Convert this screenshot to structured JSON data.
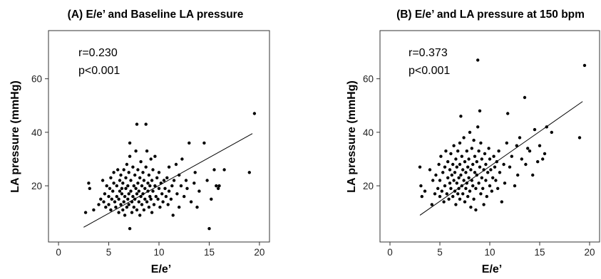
{
  "chart_data": [
    {
      "type": "scatter",
      "title": "(A) E/e’ and Baseline LA pressure",
      "xlabel": "E/e’",
      "ylabel": "LA pressure (mmHg)",
      "xlim": [
        -1,
        21
      ],
      "ylim": [
        -1,
        78
      ],
      "xticks": [
        0,
        5,
        10,
        15,
        20
      ],
      "yticks": [
        20,
        40,
        60
      ],
      "annotations": [
        "r=0.230",
        "p<0.001"
      ],
      "fit_line": {
        "x": [
          2.5,
          19.3
        ],
        "y": [
          4.5,
          39.5
        ]
      },
      "points": [
        [
          3.0,
          21
        ],
        [
          3.1,
          19
        ],
        [
          2.7,
          10
        ],
        [
          3.5,
          11
        ],
        [
          4.0,
          13
        ],
        [
          4.2,
          15
        ],
        [
          4.4,
          22
        ],
        [
          4.5,
          14
        ],
        [
          4.6,
          17
        ],
        [
          4.7,
          12
        ],
        [
          4.8,
          20
        ],
        [
          5.0,
          13
        ],
        [
          5.0,
          16
        ],
        [
          5.1,
          19
        ],
        [
          5.2,
          23
        ],
        [
          5.2,
          11
        ],
        [
          5.3,
          15
        ],
        [
          5.4,
          18
        ],
        [
          5.5,
          21
        ],
        [
          5.5,
          25
        ],
        [
          5.6,
          14
        ],
        [
          5.7,
          12
        ],
        [
          5.8,
          16
        ],
        [
          5.8,
          20
        ],
        [
          5.9,
          26
        ],
        [
          6.0,
          10
        ],
        [
          6.0,
          15
        ],
        [
          6.1,
          18
        ],
        [
          6.1,
          22
        ],
        [
          6.2,
          13
        ],
        [
          6.2,
          24
        ],
        [
          6.3,
          17
        ],
        [
          6.3,
          19
        ],
        [
          6.4,
          11
        ],
        [
          6.4,
          21
        ],
        [
          6.5,
          14
        ],
        [
          6.5,
          26
        ],
        [
          6.6,
          16
        ],
        [
          6.6,
          9
        ],
        [
          6.7,
          23
        ],
        [
          6.7,
          19
        ],
        [
          6.8,
          12
        ],
        [
          6.8,
          28
        ],
        [
          6.9,
          15
        ],
        [
          6.9,
          20
        ],
        [
          7.0,
          17
        ],
        [
          7.0,
          13
        ],
        [
          7.0,
          25
        ],
        [
          7.1,
          36
        ],
        [
          7.1,
          31
        ],
        [
          7.1,
          4
        ],
        [
          7.2,
          18
        ],
        [
          7.2,
          22
        ],
        [
          7.3,
          14
        ],
        [
          7.3,
          10
        ],
        [
          7.4,
          16
        ],
        [
          7.4,
          27
        ],
        [
          7.5,
          20
        ],
        [
          7.5,
          12
        ],
        [
          7.6,
          24
        ],
        [
          7.6,
          15
        ],
        [
          7.7,
          19
        ],
        [
          7.7,
          33
        ],
        [
          7.8,
          17
        ],
        [
          7.8,
          43
        ],
        [
          7.8,
          11
        ],
        [
          7.9,
          21
        ],
        [
          7.9,
          26
        ],
        [
          8.0,
          14
        ],
        [
          8.0,
          18
        ],
        [
          8.1,
          23
        ],
        [
          8.1,
          9
        ],
        [
          8.2,
          16
        ],
        [
          8.2,
          29
        ],
        [
          8.3,
          20
        ],
        [
          8.3,
          13
        ],
        [
          8.4,
          25
        ],
        [
          8.4,
          17
        ],
        [
          8.5,
          22
        ],
        [
          8.5,
          11
        ],
        [
          8.6,
          15
        ],
        [
          8.6,
          19
        ],
        [
          8.7,
          27
        ],
        [
          8.7,
          43
        ],
        [
          8.8,
          14
        ],
        [
          8.8,
          33
        ],
        [
          8.9,
          21
        ],
        [
          8.9,
          18
        ],
        [
          9.0,
          12
        ],
        [
          9.0,
          24
        ],
        [
          9.1,
          16
        ],
        [
          9.1,
          20
        ],
        [
          9.2,
          30
        ],
        [
          9.2,
          15
        ],
        [
          9.3,
          22
        ],
        [
          9.3,
          10
        ],
        [
          9.4,
          18
        ],
        [
          9.4,
          26
        ],
        [
          9.5,
          13
        ],
        [
          9.6,
          20
        ],
        [
          9.6,
          31
        ],
        [
          9.7,
          16
        ],
        [
          9.8,
          23
        ],
        [
          9.9,
          15
        ],
        [
          10.0,
          19
        ],
        [
          10.0,
          25
        ],
        [
          10.1,
          12
        ],
        [
          10.2,
          21
        ],
        [
          10.3,
          17
        ],
        [
          10.4,
          14
        ],
        [
          10.5,
          22
        ],
        [
          10.6,
          19
        ],
        [
          10.7,
          16
        ],
        [
          10.8,
          23
        ],
        [
          10.9,
          13
        ],
        [
          11.0,
          18
        ],
        [
          11.0,
          27
        ],
        [
          11.2,
          15
        ],
        [
          11.3,
          20
        ],
        [
          11.4,
          9
        ],
        [
          11.5,
          22
        ],
        [
          11.7,
          28
        ],
        [
          11.8,
          17
        ],
        [
          12.0,
          24
        ],
        [
          12.0,
          12
        ],
        [
          12.2,
          20
        ],
        [
          12.3,
          30
        ],
        [
          12.5,
          16
        ],
        [
          12.7,
          22
        ],
        [
          12.8,
          19
        ],
        [
          13.0,
          36
        ],
        [
          13.2,
          14
        ],
        [
          13.5,
          21
        ],
        [
          13.6,
          25
        ],
        [
          13.8,
          12
        ],
        [
          14.0,
          18
        ],
        [
          14.5,
          36
        ],
        [
          14.8,
          22
        ],
        [
          15.0,
          4
        ],
        [
          15.2,
          15
        ],
        [
          15.5,
          26
        ],
        [
          15.7,
          20
        ],
        [
          15.9,
          19
        ],
        [
          16.0,
          20
        ],
        [
          16.5,
          26
        ],
        [
          19.0,
          25
        ],
        [
          19.5,
          47
        ]
      ]
    },
    {
      "type": "scatter",
      "title": "(B) E/e’ and LA pressure at 150 bpm",
      "xlabel": "E/e’",
      "ylabel": "LA pressure (mmHg)",
      "xlim": [
        -1,
        21
      ],
      "ylim": [
        -1,
        78
      ],
      "xticks": [
        0,
        5,
        10,
        15,
        20
      ],
      "yticks": [
        20,
        40,
        60
      ],
      "annotations": [
        "r=0.373",
        "p<0.001"
      ],
      "fit_line": {
        "x": [
          3.0,
          19.3
        ],
        "y": [
          9.0,
          51.5
        ]
      },
      "points": [
        [
          3.0,
          27
        ],
        [
          3.1,
          20
        ],
        [
          3.2,
          16
        ],
        [
          3.5,
          18
        ],
        [
          4.0,
          26
        ],
        [
          4.2,
          13
        ],
        [
          4.3,
          22
        ],
        [
          4.5,
          17
        ],
        [
          4.6,
          24
        ],
        [
          4.8,
          19
        ],
        [
          4.9,
          28
        ],
        [
          5.0,
          16
        ],
        [
          5.0,
          22
        ],
        [
          5.1,
          31
        ],
        [
          5.2,
          18
        ],
        [
          5.3,
          25
        ],
        [
          5.4,
          14
        ],
        [
          5.5,
          20
        ],
        [
          5.5,
          27
        ],
        [
          5.6,
          33
        ],
        [
          5.7,
          17
        ],
        [
          5.8,
          23
        ],
        [
          5.8,
          29
        ],
        [
          5.9,
          15
        ],
        [
          6.0,
          21
        ],
        [
          6.0,
          26
        ],
        [
          6.1,
          19
        ],
        [
          6.1,
          32
        ],
        [
          6.2,
          24
        ],
        [
          6.3,
          16
        ],
        [
          6.3,
          28
        ],
        [
          6.4,
          22
        ],
        [
          6.4,
          35
        ],
        [
          6.5,
          18
        ],
        [
          6.5,
          25
        ],
        [
          6.6,
          30
        ],
        [
          6.6,
          13
        ],
        [
          6.7,
          21
        ],
        [
          6.7,
          27
        ],
        [
          6.8,
          17
        ],
        [
          6.8,
          33
        ],
        [
          6.9,
          23
        ],
        [
          6.9,
          19
        ],
        [
          7.0,
          28
        ],
        [
          7.0,
          15
        ],
        [
          7.0,
          36
        ],
        [
          7.1,
          46
        ],
        [
          7.1,
          24
        ],
        [
          7.2,
          20
        ],
        [
          7.2,
          31
        ],
        [
          7.3,
          26
        ],
        [
          7.3,
          17
        ],
        [
          7.4,
          22
        ],
        [
          7.4,
          38
        ],
        [
          7.5,
          29
        ],
        [
          7.5,
          14
        ],
        [
          7.6,
          25
        ],
        [
          7.6,
          19
        ],
        [
          7.7,
          33
        ],
        [
          7.7,
          21
        ],
        [
          7.8,
          27
        ],
        [
          7.8,
          16
        ],
        [
          7.9,
          30
        ],
        [
          7.9,
          23
        ],
        [
          8.0,
          40
        ],
        [
          8.0,
          18
        ],
        [
          8.1,
          26
        ],
        [
          8.1,
          12
        ],
        [
          8.2,
          22
        ],
        [
          8.2,
          34
        ],
        [
          8.3,
          28
        ],
        [
          8.3,
          20
        ],
        [
          8.4,
          37
        ],
        [
          8.4,
          15
        ],
        [
          8.5,
          25
        ],
        [
          8.5,
          31
        ],
        [
          8.6,
          11
        ],
        [
          8.6,
          19
        ],
        [
          8.7,
          29
        ],
        [
          8.7,
          24
        ],
        [
          8.8,
          67
        ],
        [
          8.8,
          42
        ],
        [
          8.9,
          21
        ],
        [
          8.9,
          33
        ],
        [
          9.0,
          48
        ],
        [
          9.0,
          27
        ],
        [
          9.1,
          17
        ],
        [
          9.1,
          36
        ],
        [
          9.2,
          23
        ],
        [
          9.2,
          30
        ],
        [
          9.3,
          19
        ],
        [
          9.4,
          26
        ],
        [
          9.4,
          13
        ],
        [
          9.5,
          32
        ],
        [
          9.6,
          22
        ],
        [
          9.6,
          28
        ],
        [
          9.7,
          16
        ],
        [
          9.8,
          25
        ],
        [
          9.9,
          34
        ],
        [
          10.0,
          20
        ],
        [
          10.0,
          30
        ],
        [
          10.1,
          26
        ],
        [
          10.2,
          18
        ],
        [
          10.3,
          23
        ],
        [
          10.4,
          31
        ],
        [
          10.5,
          27
        ],
        [
          10.6,
          22
        ],
        [
          10.7,
          29
        ],
        [
          10.8,
          19
        ],
        [
          10.9,
          33
        ],
        [
          11.0,
          25
        ],
        [
          11.2,
          14
        ],
        [
          11.4,
          28
        ],
        [
          11.5,
          21
        ],
        [
          11.7,
          36
        ],
        [
          11.8,
          47
        ],
        [
          12.0,
          27
        ],
        [
          12.2,
          31
        ],
        [
          12.5,
          20
        ],
        [
          12.7,
          35
        ],
        [
          12.8,
          24
        ],
        [
          13.0,
          38
        ],
        [
          13.2,
          30
        ],
        [
          13.5,
          53
        ],
        [
          13.6,
          28
        ],
        [
          13.8,
          34
        ],
        [
          14.0,
          33
        ],
        [
          14.3,
          24
        ],
        [
          14.5,
          41
        ],
        [
          14.8,
          29
        ],
        [
          15.0,
          35
        ],
        [
          15.3,
          30
        ],
        [
          15.5,
          32
        ],
        [
          15.7,
          42
        ],
        [
          16.2,
          40
        ],
        [
          19.0,
          38
        ],
        [
          19.5,
          65
        ]
      ]
    }
  ]
}
